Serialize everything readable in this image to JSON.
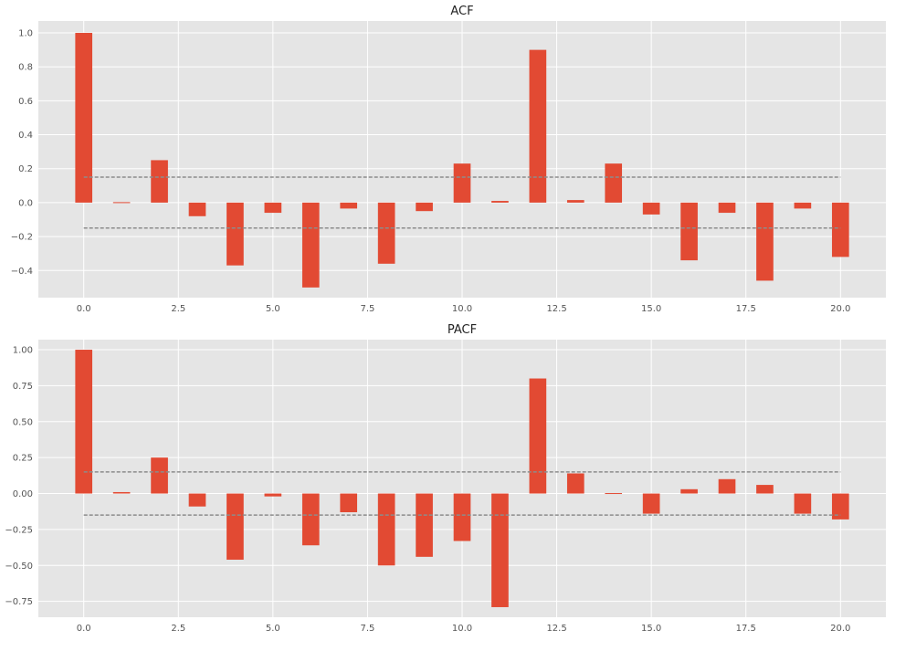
{
  "style": {
    "background": "#E5E5E5",
    "grid_color": "#FFFFFF",
    "bar_color": "#E24A33",
    "conf_line_color": "#8C8C8C"
  },
  "chart_data": [
    {
      "type": "bar",
      "title": "ACF",
      "x": [
        0,
        1,
        2,
        3,
        4,
        5,
        6,
        7,
        8,
        9,
        10,
        11,
        12,
        13,
        14,
        15,
        16,
        17,
        18,
        19,
        20
      ],
      "values": [
        1.0,
        0.005,
        0.25,
        -0.08,
        -0.37,
        -0.06,
        -0.5,
        -0.035,
        -0.36,
        -0.05,
        0.23,
        0.01,
        0.9,
        0.015,
        0.23,
        -0.07,
        -0.34,
        -0.06,
        -0.46,
        -0.035,
        -0.32
      ],
      "confidence_band": [
        -0.15,
        0.15
      ],
      "xlim": [
        -1.2,
        21.2
      ],
      "ylim": [
        -0.56,
        1.07
      ],
      "xticks": [
        0.0,
        2.5,
        5.0,
        7.5,
        10.0,
        12.5,
        15.0,
        17.5,
        20.0
      ],
      "xtick_labels": [
        "0.0",
        "2.5",
        "5.0",
        "7.5",
        "10.0",
        "12.5",
        "15.0",
        "17.5",
        "20.0"
      ],
      "yticks": [
        -0.4,
        -0.2,
        0.0,
        0.2,
        0.4,
        0.6,
        0.8,
        1.0
      ],
      "ytick_labels": [
        "−0.4",
        "−0.2",
        "0.0",
        "0.2",
        "0.4",
        "0.6",
        "0.8",
        "1.0"
      ],
      "grid": true
    },
    {
      "type": "bar",
      "title": "PACF",
      "x": [
        0,
        1,
        2,
        3,
        4,
        5,
        6,
        7,
        8,
        9,
        10,
        11,
        12,
        13,
        14,
        15,
        16,
        17,
        18,
        19,
        20
      ],
      "values": [
        1.0,
        0.01,
        0.25,
        -0.09,
        -0.46,
        -0.02,
        -0.36,
        -0.13,
        -0.5,
        -0.44,
        -0.33,
        -0.79,
        0.8,
        0.14,
        0.005,
        -0.14,
        0.03,
        0.1,
        0.06,
        -0.14,
        -0.18
      ],
      "confidence_band": [
        -0.15,
        0.15
      ],
      "xlim": [
        -1.2,
        21.2
      ],
      "ylim": [
        -0.86,
        1.07
      ],
      "xticks": [
        0.0,
        2.5,
        5.0,
        7.5,
        10.0,
        12.5,
        15.0,
        17.5,
        20.0
      ],
      "xtick_labels": [
        "0.0",
        "2.5",
        "5.0",
        "7.5",
        "10.0",
        "12.5",
        "15.0",
        "17.5",
        "20.0"
      ],
      "yticks": [
        -0.75,
        -0.5,
        -0.25,
        0.0,
        0.25,
        0.5,
        0.75,
        1.0
      ],
      "ytick_labels": [
        "−0.75",
        "−0.50",
        "−0.25",
        "0.00",
        "0.25",
        "0.50",
        "0.75",
        "1.00"
      ],
      "grid": true
    }
  ]
}
